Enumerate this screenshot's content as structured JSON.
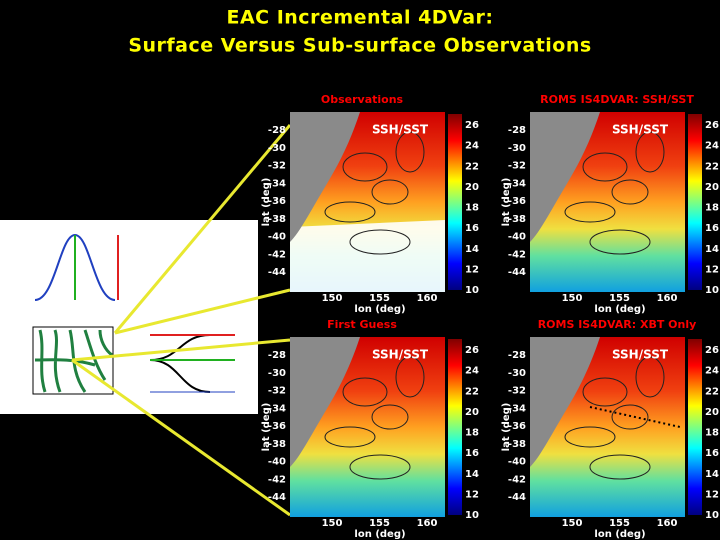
{
  "header": {
    "title_lines": [
      "EAC Incremental 4DVar:",
      "Surface Versus Sub-surface Observations"
    ]
  },
  "axes": {
    "lat_ticks": [
      -28,
      -30,
      -32,
      -34,
      -36,
      -38,
      -40,
      -42,
      -44
    ],
    "lon_ticks": [
      150,
      155,
      160
    ],
    "colorbar_ticks": [
      26,
      24,
      22,
      20,
      18,
      16,
      14,
      12,
      10
    ],
    "lat_label": "lat (deg)",
    "lon_label": "lon (deg)"
  },
  "panels": [
    {
      "label": "Observations",
      "inset": "SSH/SST"
    },
    {
      "label": "ROMS IS4DVAR: SSH/SST",
      "inset": "SSH/SST"
    },
    {
      "label": "First Guess",
      "inset": "SSH/SST"
    },
    {
      "label": "ROMS IS4DVAR: XBT Only",
      "inset": "SSH/SST"
    }
  ]
}
